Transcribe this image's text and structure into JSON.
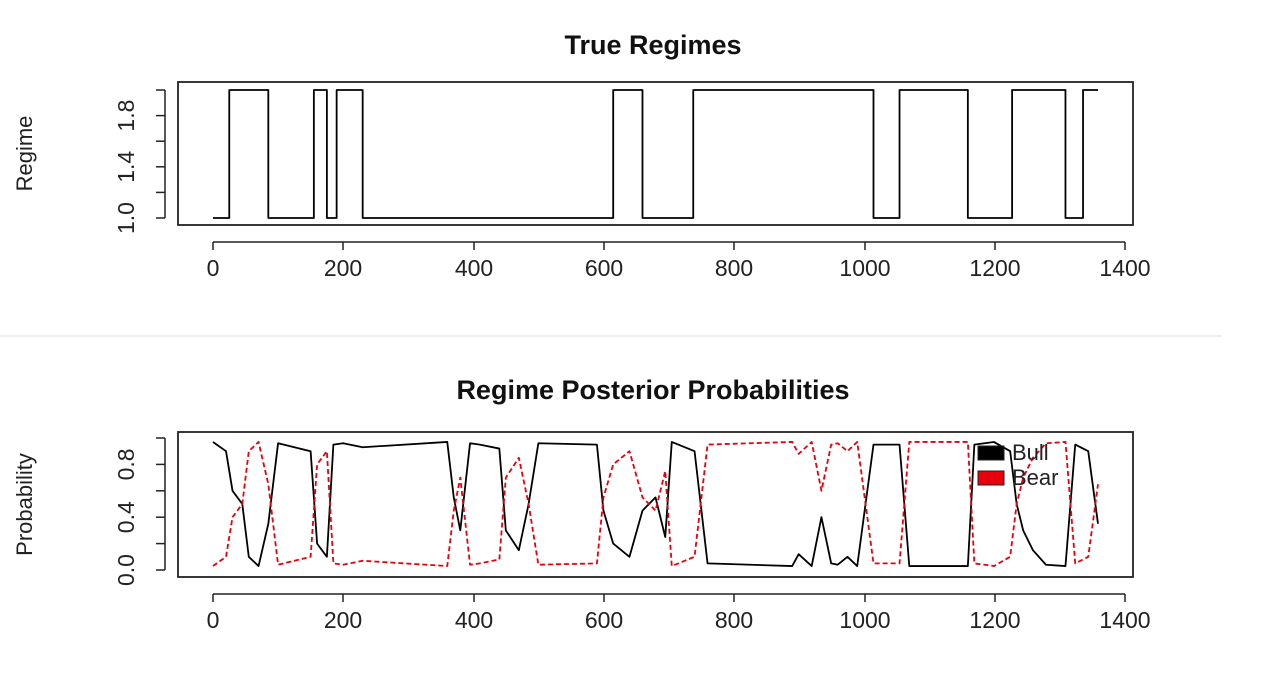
{
  "chart_data": [
    {
      "type": "line",
      "title": "True Regimes",
      "ylabel": "Regime",
      "xlabel": "",
      "xlim": [
        0,
        1360
      ],
      "ylim": [
        1.0,
        2.0
      ],
      "x_ticks": [
        0,
        200,
        400,
        600,
        800,
        1000,
        1200,
        1400
      ],
      "y_ticks": [
        1.0,
        1.4,
        1.8
      ],
      "y_minor_ticks": [
        1.0,
        1.2,
        1.4,
        1.6,
        1.8,
        2.0
      ],
      "step": true,
      "series": [
        {
          "color": "#000000",
          "x": [
            0,
            25,
            85,
            155,
            175,
            190,
            230,
            615,
            660,
            738,
            1015,
            1055,
            1160,
            1228,
            1310,
            1337,
            1360
          ],
          "y": [
            1.0,
            2.0,
            1.0,
            2.0,
            1.0,
            2.0,
            1.0,
            2.0,
            1.0,
            2.0,
            1.0,
            2.0,
            1.0,
            2.0,
            1.0,
            2.0,
            2.0
          ]
        }
      ],
      "grid": false
    },
    {
      "type": "line",
      "title": "Regime Posterior Probabilities",
      "ylabel": "Probability",
      "xlabel": "",
      "xlim": [
        0,
        1360
      ],
      "ylim": [
        0.0,
        1.0
      ],
      "x_ticks": [
        0,
        200,
        400,
        600,
        800,
        1000,
        1200,
        1400
      ],
      "y_ticks": [
        0.0,
        0.4,
        0.8
      ],
      "y_minor_ticks": [
        0.0,
        0.2,
        0.4,
        0.6,
        0.8,
        1.0
      ],
      "legend_position": "top-right",
      "grid": false,
      "series": [
        {
          "name": "Bull",
          "color": "#000000",
          "style": "solid",
          "x": [
            0,
            20,
            30,
            45,
            55,
            70,
            85,
            100,
            150,
            160,
            175,
            185,
            200,
            230,
            360,
            370,
            380,
            395,
            410,
            440,
            450,
            470,
            485,
            500,
            590,
            600,
            615,
            640,
            660,
            680,
            695,
            705,
            740,
            760,
            890,
            900,
            920,
            935,
            950,
            960,
            975,
            990,
            1015,
            1055,
            1070,
            1160,
            1170,
            1200,
            1225,
            1235,
            1245,
            1260,
            1280,
            1310,
            1325,
            1345,
            1360
          ],
          "y": [
            0.97,
            0.9,
            0.6,
            0.5,
            0.1,
            0.03,
            0.35,
            0.96,
            0.9,
            0.2,
            0.1,
            0.95,
            0.96,
            0.93,
            0.97,
            0.55,
            0.3,
            0.96,
            0.95,
            0.92,
            0.3,
            0.15,
            0.5,
            0.96,
            0.95,
            0.45,
            0.2,
            0.1,
            0.45,
            0.55,
            0.25,
            0.97,
            0.9,
            0.05,
            0.03,
            0.12,
            0.03,
            0.4,
            0.05,
            0.04,
            0.1,
            0.03,
            0.95,
            0.95,
            0.03,
            0.03,
            0.95,
            0.97,
            0.9,
            0.5,
            0.3,
            0.15,
            0.04,
            0.03,
            0.95,
            0.9,
            0.35
          ]
        },
        {
          "name": "Bear",
          "color": "#e8000b",
          "style": "dashed",
          "x": [
            0,
            20,
            30,
            45,
            55,
            70,
            85,
            100,
            150,
            160,
            175,
            185,
            200,
            230,
            360,
            370,
            380,
            395,
            410,
            440,
            450,
            470,
            485,
            500,
            590,
            600,
            615,
            640,
            660,
            680,
            695,
            705,
            740,
            760,
            890,
            900,
            920,
            935,
            950,
            960,
            975,
            990,
            1015,
            1055,
            1070,
            1160,
            1170,
            1200,
            1225,
            1235,
            1245,
            1260,
            1280,
            1310,
            1325,
            1345,
            1360
          ],
          "y": [
            0.03,
            0.1,
            0.4,
            0.5,
            0.9,
            0.97,
            0.65,
            0.04,
            0.1,
            0.8,
            0.9,
            0.05,
            0.04,
            0.07,
            0.03,
            0.45,
            0.7,
            0.04,
            0.05,
            0.08,
            0.7,
            0.85,
            0.5,
            0.04,
            0.05,
            0.55,
            0.8,
            0.9,
            0.55,
            0.45,
            0.75,
            0.03,
            0.1,
            0.95,
            0.97,
            0.88,
            0.97,
            0.6,
            0.95,
            0.96,
            0.9,
            0.97,
            0.05,
            0.05,
            0.97,
            0.97,
            0.05,
            0.03,
            0.1,
            0.5,
            0.7,
            0.85,
            0.96,
            0.97,
            0.05,
            0.1,
            0.65
          ]
        }
      ]
    }
  ]
}
